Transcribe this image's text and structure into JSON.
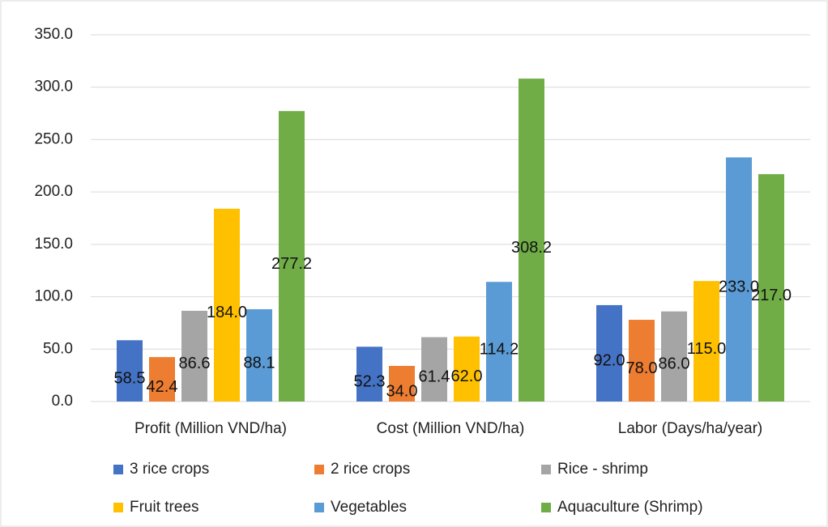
{
  "chart_data": {
    "type": "bar",
    "categories": [
      "Profit (Million VND/ha)",
      "Cost (Million VND/ha)",
      "Labor (Days/ha/year)"
    ],
    "series": [
      {
        "name": "3 rice crops",
        "color": "#4472c4",
        "values": [
          58.5,
          52.3,
          92.0
        ],
        "value_labels": [
          "58.5",
          "52.3",
          "92.0"
        ]
      },
      {
        "name": "2 rice crops",
        "color": "#ed7d31",
        "values": [
          42.4,
          34.0,
          78.0
        ],
        "value_labels": [
          "42.4",
          "34.0",
          "78.0"
        ]
      },
      {
        "name": "Rice - shrimp",
        "color": "#a5a5a5",
        "values": [
          86.6,
          61.4,
          86.0
        ],
        "value_labels": [
          "86.6",
          "61.4",
          "86.0"
        ]
      },
      {
        "name": "Fruit trees",
        "color": "#ffc000",
        "values": [
          184.0,
          62.0,
          115.0
        ],
        "value_labels": [
          "184.0",
          "62.0",
          "115.0"
        ]
      },
      {
        "name": "Vegetables",
        "color": "#5b9bd5",
        "values": [
          88.1,
          114.2,
          233.0
        ],
        "value_labels": [
          "88.1",
          "114.2",
          "233.0"
        ]
      },
      {
        "name": "Aquaculture (Shrimp)",
        "color": "#70ad47",
        "values": [
          277.2,
          308.2,
          217.0
        ],
        "value_labels": [
          "277.2",
          "308.2",
          "217.0"
        ]
      }
    ],
    "ylim": [
      0,
      350
    ],
    "yticks": [
      {
        "value": 0,
        "label": "0.0"
      },
      {
        "value": 50,
        "label": "50.0"
      },
      {
        "value": 100,
        "label": "100.0"
      },
      {
        "value": 150,
        "label": "150.0"
      },
      {
        "value": 200,
        "label": "200.0"
      },
      {
        "value": 250,
        "label": "250.0"
      },
      {
        "value": 300,
        "label": "300.0"
      },
      {
        "value": 350,
        "label": "350.0"
      }
    ],
    "grid": true,
    "legend": "bottom"
  }
}
